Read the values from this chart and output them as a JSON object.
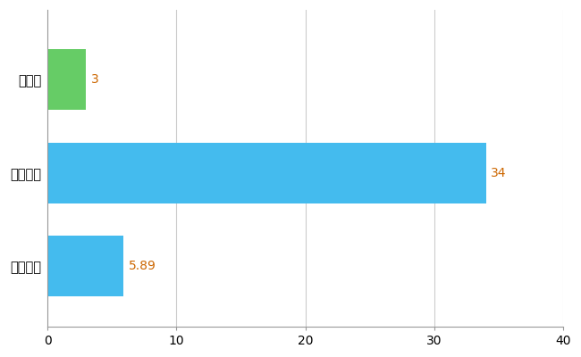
{
  "categories": [
    "全国平均",
    "全国最大",
    "徳島県"
  ],
  "values": [
    5.89,
    34,
    3
  ],
  "bar_colors": [
    "#44bbee",
    "#44bbee",
    "#66cc66"
  ],
  "value_labels": [
    "5.89",
    "34",
    "3"
  ],
  "value_label_color": "#cc6600",
  "xlim": [
    0,
    40
  ],
  "xticks": [
    0,
    10,
    20,
    30,
    40
  ],
  "grid_color": "#cccccc",
  "bg_color": "#ffffff",
  "bar_height": 0.65,
  "figsize": [
    6.5,
    4.0
  ],
  "dpi": 100,
  "label_fontsize": 10.5,
  "tick_fontsize": 10
}
